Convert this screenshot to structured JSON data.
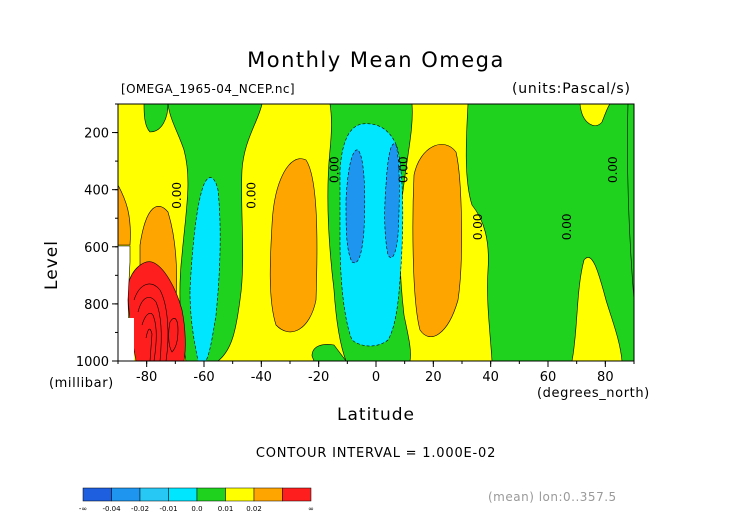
{
  "chart_data": {
    "type": "heatmap",
    "title": "Monthly Mean Omega",
    "subtitle_left": "[OMEGA_1965-04_NCEP.nc]",
    "subtitle_right": "(units:Pascal/s)",
    "xlabel": "Latitude",
    "xunit": "(degrees_north)",
    "ylabel": "Level",
    "yunit": "(millibar)",
    "xlim": [
      -90,
      90
    ],
    "ylim": [
      1000,
      100
    ],
    "xticks": [
      "-80",
      "-60",
      "-40",
      "-20",
      "0",
      "20",
      "40",
      "60",
      "80"
    ],
    "xtick_values": [
      -80,
      -60,
      -40,
      -20,
      0,
      20,
      40,
      60,
      80
    ],
    "yticks": [
      "200",
      "400",
      "600",
      "800",
      "1000"
    ],
    "ytick_values": [
      200,
      400,
      600,
      800,
      1000
    ],
    "contour_interval": "CONTOUR INTERVAL = 1.000E-02",
    "note": "(mean) lon:0..357.5",
    "contour_labels": [
      {
        "text": "0.00",
        "lat": -68,
        "level": 420
      },
      {
        "text": "0.00",
        "lat": -42,
        "level": 420
      },
      {
        "text": "0.00",
        "lat": -13,
        "level": 330
      },
      {
        "text": "0.00",
        "lat": 11,
        "level": 330
      },
      {
        "text": "0.00",
        "lat": 37,
        "level": 530
      },
      {
        "text": "0.00",
        "lat": 68,
        "level": 530
      },
      {
        "text": "0.00",
        "lat": 84,
        "level": 330
      }
    ],
    "levels": [
      {
        "label": "-∞",
        "color": "#1e5fe0"
      },
      {
        "label": "-0.04",
        "color": "#1e96f0"
      },
      {
        "label": "-0.02",
        "color": "#28c8f5"
      },
      {
        "label": "-0.01",
        "color": "#00e6ff"
      },
      {
        "label": "0.0",
        "color": "#1ed21e"
      },
      {
        "label": "0.01",
        "color": "#ffff00"
      },
      {
        "label": "0.02",
        "color": "#ffa500"
      },
      {
        "label": "∞",
        "color": "#ff1e1e"
      }
    ]
  }
}
